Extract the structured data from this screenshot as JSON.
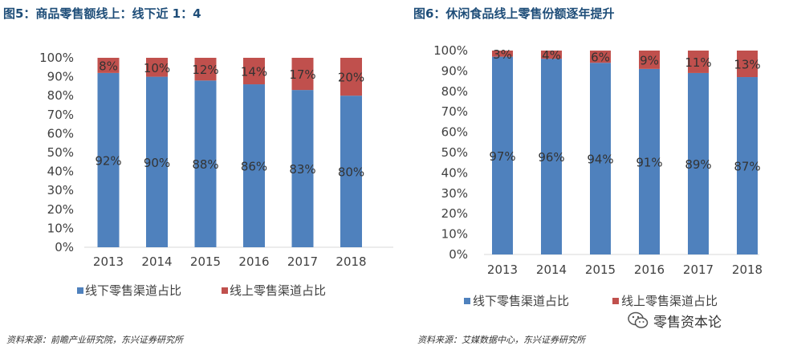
{
  "chart_data": [
    {
      "type": "bar",
      "stacked": true,
      "title": "图5：商品零售额线上：线下近 1：4",
      "categories": [
        "2013",
        "2014",
        "2015",
        "2016",
        "2017",
        "2018"
      ],
      "series": [
        {
          "name": "线下零售渠道占比",
          "color": "#4f81bd",
          "values": [
            92,
            90,
            88,
            86,
            83,
            80
          ],
          "labels": [
            "92%",
            "90%",
            "88%",
            "86%",
            "83%",
            "80%"
          ]
        },
        {
          "name": "线上零售渠道占比",
          "color": "#c0504d",
          "values": [
            8,
            10,
            12,
            14,
            17,
            20
          ],
          "labels": [
            "8%",
            "10%",
            "12%",
            "14%",
            "17%",
            "20%"
          ]
        }
      ],
      "yticks": [
        "0%",
        "10%",
        "20%",
        "30%",
        "40%",
        "50%",
        "60%",
        "70%",
        "80%",
        "90%",
        "100%"
      ],
      "ylim": [
        0,
        100
      ],
      "legend": "bottom",
      "source": "资料来源：前瞻产业研究院，东兴证券研究所"
    },
    {
      "type": "bar",
      "stacked": true,
      "title": "图6：休闲食品线上零售份额逐年提升",
      "categories": [
        "2013",
        "2014",
        "2015",
        "2016",
        "2017",
        "2018"
      ],
      "series": [
        {
          "name": "线下零售渠道占比",
          "color": "#4f81bd",
          "values": [
            97,
            96,
            94,
            91,
            89,
            87
          ],
          "labels": [
            "97%",
            "96%",
            "94%",
            "91%",
            "89%",
            "87%"
          ]
        },
        {
          "name": "线上零售渠道占比",
          "color": "#c0504d",
          "values": [
            3,
            4,
            6,
            9,
            11,
            13
          ],
          "labels": [
            "3%",
            "4%",
            "6%",
            "9%",
            "11%",
            "13%"
          ]
        }
      ],
      "yticks": [
        "0%",
        "10%",
        "20%",
        "30%",
        "40%",
        "50%",
        "60%",
        "70%",
        "80%",
        "90%",
        "100%"
      ],
      "ylim": [
        0,
        100
      ],
      "legend": "bottom",
      "source": "资料来源：艾媒数据中心，东兴证券研究所"
    }
  ],
  "watermark": {
    "text": "零售资本论",
    "icon": "wechat-icon"
  }
}
